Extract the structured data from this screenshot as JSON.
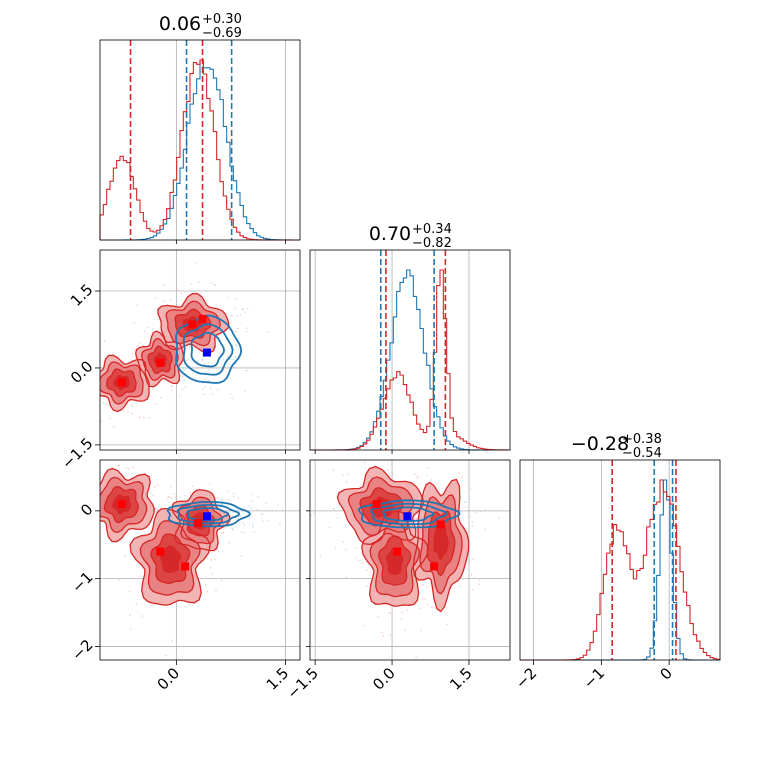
{
  "chart_data": {
    "type": "corner",
    "colors": {
      "red": "#d62728",
      "blue": "#1f77b4",
      "grid": "#b0b0b0",
      "marker_blue": "#0000ff",
      "marker_red": "#ff0000"
    },
    "params": [
      {
        "index": 0,
        "range": [
          -1.05,
          1.7
        ],
        "title_value": "0.06",
        "title_plus": "+0.30",
        "title_minus": "−0.69",
        "quantiles_red": [
          -0.63,
          0.36
        ],
        "quantiles_blue": [
          0.14,
          0.76
        ],
        "median_red": 0.36,
        "ticks": [
          0.0,
          1.5
        ],
        "tick_labels": [
          "0.0",
          "1.5"
        ]
      },
      {
        "index": 1,
        "range": [
          -1.6,
          2.3
        ],
        "title_value": "0.70",
        "title_plus": "+0.34",
        "title_minus": "−0.82",
        "quantiles_red": [
          -0.12,
          1.04
        ],
        "quantiles_blue": [
          -0.22,
          0.82
        ],
        "median_red": -0.12,
        "ticks": [
          -1.5,
          0.0,
          1.5
        ],
        "tick_labels": [
          "−1.5",
          "0.0",
          "1.5"
        ]
      },
      {
        "index": 2,
        "range": [
          -2.2,
          0.75
        ],
        "title_value": "−0.28",
        "title_plus": "+0.38",
        "title_minus": "−0.54",
        "quantiles_red": [
          -0.84,
          0.1
        ],
        "quantiles_blue": [
          -0.22,
          0.05
        ],
        "median_red": 0.1,
        "ticks": [
          -2,
          -1,
          0
        ],
        "tick_labels": [
          "−2",
          "−1",
          "0"
        ]
      }
    ],
    "hist_red": [
      {
        "param": 0,
        "components": [
          {
            "w": 0.28,
            "mu": -0.75,
            "sd": 0.18
          },
          {
            "w": 0.72,
            "mu": 0.3,
            "sd": 0.22
          }
        ]
      },
      {
        "param": 1,
        "components": [
          {
            "w": 0.55,
            "mu": 0.1,
            "sd": 0.28
          },
          {
            "w": 0.45,
            "mu": 0.95,
            "sd": 0.1
          },
          {
            "w": 0.12,
            "mu": 1.1,
            "sd": 0.3
          }
        ]
      },
      {
        "param": 2,
        "components": [
          {
            "w": 0.35,
            "mu": -0.78,
            "sd": 0.18
          },
          {
            "w": 0.65,
            "mu": -0.1,
            "sd": 0.25
          }
        ]
      }
    ],
    "hist_blue": [
      {
        "param": 0,
        "components": [
          {
            "w": 1.0,
            "mu": 0.42,
            "sd": 0.26
          }
        ]
      },
      {
        "param": 1,
        "components": [
          {
            "w": 1.0,
            "mu": 0.3,
            "sd": 0.33
          }
        ]
      },
      {
        "param": 2,
        "components": [
          {
            "w": 1.0,
            "mu": -0.05,
            "sd": 0.09
          }
        ]
      }
    ],
    "panels_2d": [
      {
        "row": 1,
        "col": 0,
        "red_blobs": [
          {
            "cx": -0.75,
            "cy": -0.28,
            "rx": 0.25,
            "ry": 0.3
          },
          {
            "cx": -0.22,
            "cy": 0.15,
            "rx": 0.2,
            "ry": 0.3
          },
          {
            "cx": 0.22,
            "cy": 0.85,
            "rx": 0.3,
            "ry": 0.32
          }
        ],
        "red_markers": [
          [
            -0.75,
            -0.28
          ],
          [
            -0.22,
            0.1
          ],
          [
            0.22,
            0.85
          ],
          [
            0.36,
            0.95
          ]
        ],
        "blue_center": [
          0.42,
          0.35
        ],
        "blue_rx": 0.44,
        "blue_ry": 0.65,
        "blue_marker": [
          0.42,
          0.3
        ]
      },
      {
        "row": 2,
        "col": 0,
        "red_blobs": [
          {
            "cx": -0.75,
            "cy": 0.1,
            "rx": 0.28,
            "ry": 0.3
          },
          {
            "cx": -0.08,
            "cy": -0.72,
            "rx": 0.3,
            "ry": 0.45
          },
          {
            "cx": 0.32,
            "cy": -0.15,
            "rx": 0.22,
            "ry": 0.28
          }
        ],
        "red_markers": [
          [
            -0.75,
            0.1
          ],
          [
            -0.22,
            -0.6
          ],
          [
            0.12,
            -0.82
          ],
          [
            0.3,
            -0.18
          ]
        ],
        "blue_center": [
          0.42,
          -0.05
        ],
        "blue_rx": 0.55,
        "blue_ry": 0.18,
        "blue_marker": [
          0.42,
          -0.08
        ]
      },
      {
        "row": 2,
        "col": 1,
        "red_blobs": [
          {
            "cx": -0.2,
            "cy": 0.05,
            "rx": 0.5,
            "ry": 0.32
          },
          {
            "cx": 0.05,
            "cy": -0.75,
            "rx": 0.35,
            "ry": 0.45
          },
          {
            "cx": 0.95,
            "cy": -0.45,
            "rx": 0.32,
            "ry": 0.55
          }
        ],
        "red_markers": [
          [
            -0.3,
            0.1
          ],
          [
            0.95,
            -0.2
          ],
          [
            0.1,
            -0.6
          ],
          [
            0.82,
            -0.82
          ]
        ],
        "blue_center": [
          0.3,
          -0.05
        ],
        "blue_rx": 0.95,
        "blue_ry": 0.2,
        "blue_marker": [
          0.3,
          -0.08
        ]
      }
    ]
  }
}
